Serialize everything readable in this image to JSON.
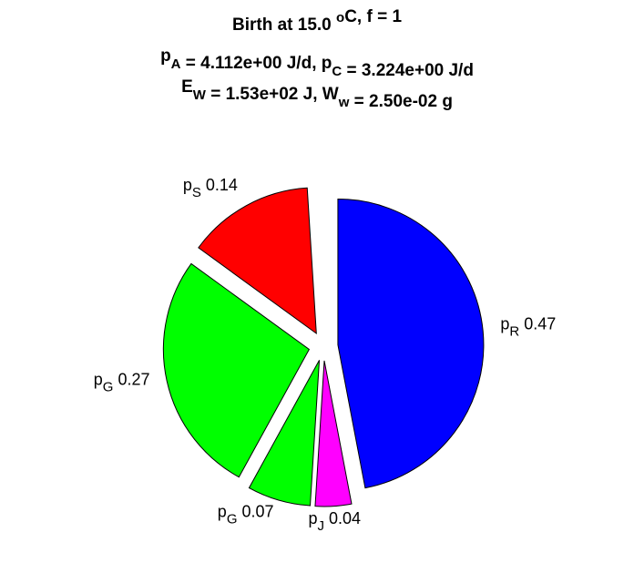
{
  "chart_data": {
    "type": "pie",
    "title": [
      [
        {
          "text": "Birth at 15.0 "
        },
        {
          "sup": "o"
        },
        {
          "text": "C, f = 1"
        }
      ],
      [
        {
          "text": "p"
        },
        {
          "sub": "A"
        },
        {
          "text": " = 4.112e+00 J/d, p"
        },
        {
          "sub": "C"
        },
        {
          "text": " = 3.224e+00 J/d"
        }
      ],
      [
        {
          "text": "E"
        },
        {
          "sub": "W"
        },
        {
          "text": " = 1.53e+02 J, W"
        },
        {
          "sub": "w"
        },
        {
          "text": " = 2.50e-02 g"
        }
      ]
    ],
    "labels": [
      {
        "base": "p",
        "sub": "R"
      },
      {
        "base": "p",
        "sub": "J"
      },
      {
        "base": "p",
        "sub": "G"
      },
      {
        "base": "p",
        "sub": "G"
      },
      {
        "base": "p",
        "sub": "S"
      }
    ],
    "values": [
      0.47,
      0.04,
      0.07,
      0.27,
      0.14
    ],
    "colors": [
      "#0000ff",
      "#ff00ff",
      "#00ff00",
      "#00ff00",
      "#ff0000"
    ],
    "explode": true
  }
}
